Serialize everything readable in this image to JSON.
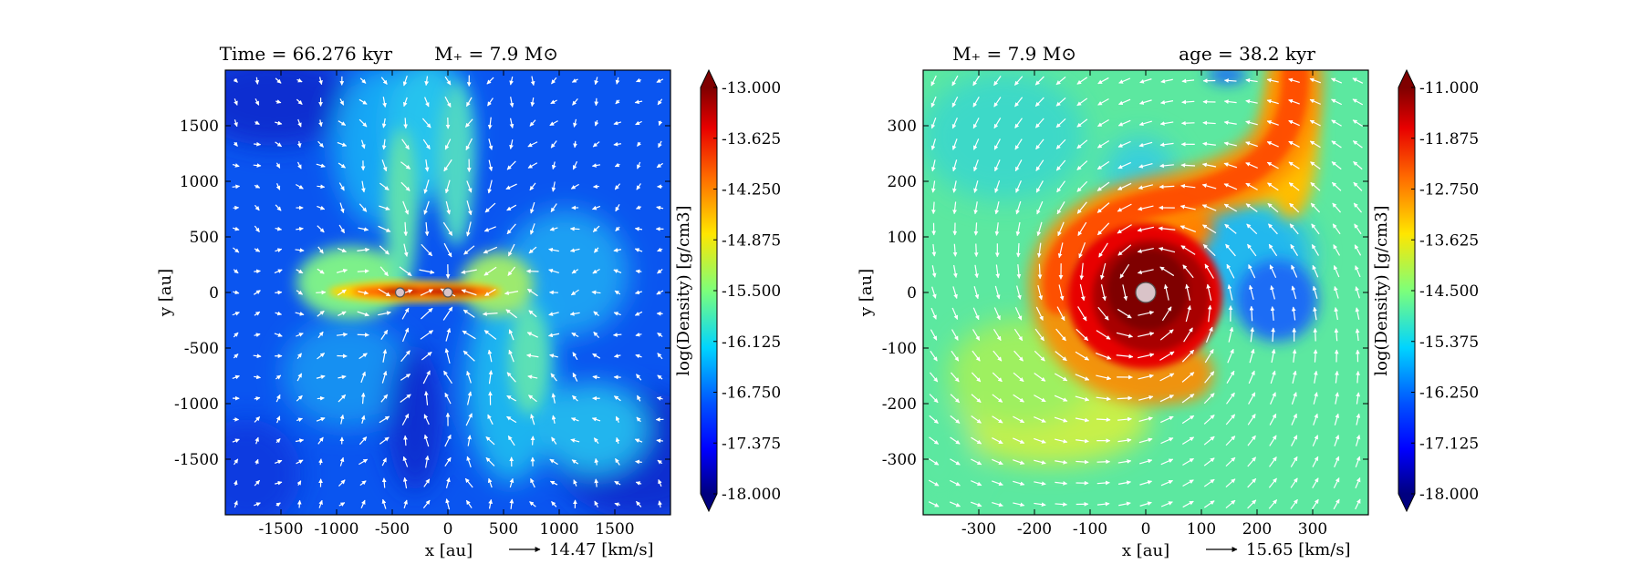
{
  "chart_data": [
    {
      "type": "heatmap",
      "title_left": "Time = 66.276 kyr",
      "title_right": "M₊ = 7.9 M⊙",
      "xlabel": "x [au]",
      "ylabel": "y [au]",
      "xlim": [
        -2000,
        2000
      ],
      "ylim": [
        -2000,
        2000
      ],
      "xticks": [
        -1500,
        -1000,
        -500,
        0,
        500,
        1000,
        1500
      ],
      "yticks": [
        -1500,
        -1000,
        -500,
        0,
        500,
        1000,
        1500
      ],
      "colorbar": {
        "label": "log(Density) [g/cm3]",
        "range": [
          -18.0,
          -13.0
        ],
        "ticks": [
          "-13.000",
          "-13.625",
          "-14.250",
          "-14.875",
          "-15.500",
          "-16.125",
          "-16.750",
          "-17.375",
          "-18.000"
        ]
      },
      "velocity_key": "14.47 [km/s]",
      "stars": [
        {
          "x": -430,
          "y": 0
        },
        {
          "x": 0,
          "y": 0
        }
      ],
      "grid": false
    },
    {
      "type": "heatmap",
      "title_left": "M₊ = 7.9 M⊙",
      "title_right": "age = 38.2 kyr",
      "xlabel": "x [au]",
      "ylabel": "y [au]",
      "xlim": [
        -400,
        400
      ],
      "ylim": [
        -400,
        400
      ],
      "xticks": [
        -300,
        -200,
        -100,
        0,
        100,
        200,
        300
      ],
      "yticks": [
        -300,
        -200,
        -100,
        0,
        100,
        200,
        300
      ],
      "colorbar": {
        "label": "log(Density) [g/cm3]",
        "range": [
          -18.0,
          -11.0
        ],
        "ticks": [
          "-11.000",
          "-11.875",
          "-12.750",
          "-13.625",
          "-14.500",
          "-15.375",
          "-16.250",
          "-17.125",
          "-18.000"
        ]
      },
      "velocity_key": "15.65 [km/s]",
      "stars": [
        {
          "x": 0,
          "y": 0
        }
      ],
      "grid": false
    }
  ]
}
